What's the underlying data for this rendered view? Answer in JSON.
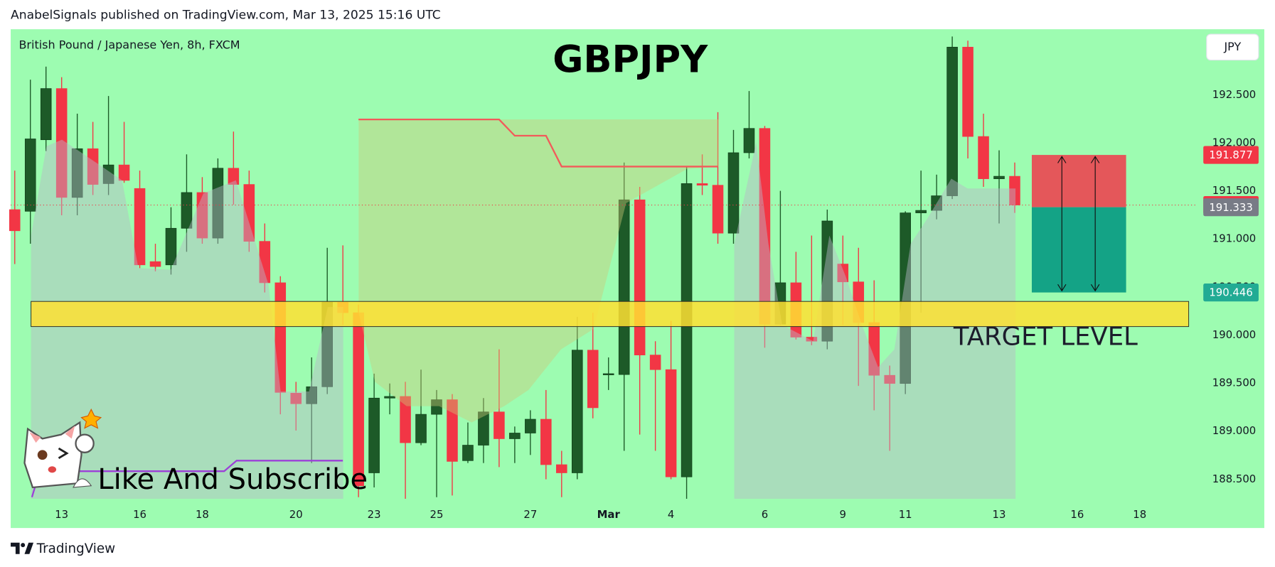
{
  "chart_data": {
    "type": "candlestick",
    "header": "AnabelSignals published on TradingView.com, Mar 13, 2025 15:16 UTC",
    "symbol": "British Pound / Japanese Yen, 8h, FXCM",
    "title": "GBPJPY",
    "currency": "JPY",
    "footer": "TradingView",
    "up_color": "#1d5a28",
    "down_color": "#f23645",
    "xlim": [
      -0.26,
      75.55
    ],
    "ylim": [
      187.995,
      193.185
    ],
    "yticks": [
      {
        "value": 188.5,
        "label": "188.500"
      },
      {
        "value": 189,
        "label": "189.000"
      },
      {
        "value": 189.5,
        "label": "189.500"
      },
      {
        "value": 190,
        "label": "190.000"
      },
      {
        "value": 190.5,
        "label": "190.500"
      },
      {
        "value": 191,
        "label": "191.000"
      },
      {
        "value": 191.5,
        "label": "191.500"
      },
      {
        "value": 192,
        "label": "192.000"
      },
      {
        "value": 192.5,
        "label": "192.500"
      }
    ],
    "xticks": [
      {
        "value": 3,
        "label": "13"
      },
      {
        "value": 8,
        "label": "16"
      },
      {
        "value": 12,
        "label": "18"
      },
      {
        "value": 18,
        "label": "20"
      },
      {
        "value": 23,
        "label": "23"
      },
      {
        "value": 27,
        "label": "25"
      },
      {
        "value": 33,
        "label": "27"
      },
      {
        "value": 38,
        "label": "Mar"
      },
      {
        "value": 42,
        "label": "4"
      },
      {
        "value": 48,
        "label": "6"
      },
      {
        "value": 53,
        "label": "9"
      },
      {
        "value": 57,
        "label": "11"
      },
      {
        "value": 63,
        "label": "13"
      },
      {
        "value": 68,
        "label": "16"
      },
      {
        "value": 72,
        "label": "18"
      }
    ],
    "open": [
      191.308,
      191.291,
      192.035,
      192.568,
      191.435,
      191.942,
      191.579,
      191.773,
      191.528,
      190.767,
      190.733,
      191.114,
      191.486,
      191.012,
      191.739,
      191.57,
      190.978,
      190.547,
      189.398,
      189.288,
      189.465,
      190.344,
      190.235,
      188.569,
      189.347,
      189.364,
      188.882,
      189.178,
      189.33,
      188.696,
      188.857,
      189.203,
      188.924,
      188.983,
      189.127,
      188.654,
      188.569,
      189.846,
      189.592,
      189.592,
      191.41,
      189.795,
      189.643,
      188.527,
      191.579,
      191.562,
      191.063,
      191.9,
      192.153,
      190.116,
      190.547,
      189.981,
      189.939,
      190.742,
      190.556,
      190.133,
      189.584,
      189.499,
      191.274,
      191.3,
      191.452,
      192.999,
      192.069,
      191.629,
      191.655
    ],
    "high": [
      191.714,
      192.66,
      192.796,
      192.686,
      192.306,
      192.221,
      192.49,
      192.221,
      191.714,
      190.953,
      191.333,
      191.883,
      191.646,
      191.841,
      192.12,
      191.714,
      191.164,
      190.615,
      189.516,
      189.77,
      190.911,
      190.936,
      190.319,
      189.601,
      189.499,
      189.516,
      189.643,
      189.431,
      189.389,
      189.093,
      189.347,
      189.854,
      189.051,
      189.22,
      189.431,
      188.798,
      190.192,
      190.235,
      189.77,
      191.798,
      191.545,
      189.939,
      190.15,
      191.756,
      191.883,
      192.322,
      192.137,
      192.542,
      192.179,
      191.503,
      190.869,
      191.038,
      191.308,
      191.038,
      190.911,
      190.573,
      189.685,
      191.291,
      191.714,
      191.672,
      193.109,
      193.066,
      192.306,
      191.925,
      191.798
    ],
    "low": [
      190.742,
      190.953,
      191.917,
      191.249,
      191.249,
      191.46,
      191.46,
      191.587,
      190.699,
      190.666,
      190.632,
      190.869,
      190.953,
      190.953,
      191.359,
      190.869,
      190.446,
      189.178,
      189.009,
      188.671,
      189.389,
      190.108,
      188.316,
      188.417,
      189.178,
      188.299,
      188.857,
      188.316,
      188.333,
      188.671,
      188.671,
      188.629,
      188.671,
      188.755,
      188.502,
      188.316,
      188.502,
      189.136,
      189.431,
      188.798,
      188.967,
      188.798,
      188.502,
      188.299,
      191.46,
      190.953,
      190.953,
      191.841,
      189.871,
      190.108,
      189.956,
      189.897,
      189.854,
      190.108,
      189.474,
      189.22,
      188.798,
      189.389,
      190.235,
      191.207,
      191.418,
      191.841,
      191.545,
      191.164,
      191.274
    ],
    "close": [
      191.088,
      192.044,
      192.568,
      191.435,
      191.942,
      191.57,
      191.773,
      191.612,
      190.733,
      190.716,
      191.114,
      191.486,
      191.012,
      191.739,
      191.57,
      190.978,
      190.547,
      189.406,
      189.288,
      189.465,
      190.344,
      190.235,
      188.434,
      189.347,
      189.364,
      188.882,
      189.178,
      189.33,
      188.688,
      188.857,
      189.203,
      188.924,
      188.983,
      189.127,
      188.654,
      188.569,
      189.846,
      189.246,
      189.601,
      191.41,
      189.795,
      189.643,
      188.527,
      191.579,
      191.562,
      191.063,
      191.9,
      192.153,
      190.116,
      190.547,
      189.981,
      189.939,
      191.19,
      190.556,
      190.133,
      189.584,
      189.499,
      191.274,
      191.3,
      191.452,
      192.999,
      192.069,
      191.629,
      191.655,
      191.356
    ],
    "resistance_line": {
      "color": "#f25a5a",
      "x": [
        22,
        31,
        32,
        34,
        35,
        45
      ],
      "values": [
        192.246,
        192.246,
        192.077,
        192.077,
        191.756,
        191.756
      ]
    },
    "support_line": {
      "color": "#9c40d8",
      "x": [
        1.1,
        1.6,
        13.4,
        14.2,
        21
      ],
      "values": [
        188.316,
        188.586,
        188.586,
        188.696,
        188.696
      ]
    },
    "zone": {
      "low": 190.091,
      "high": 190.353,
      "color": "#ffe033",
      "label": "TARGET LEVEL"
    },
    "position": {
      "stop": 191.877,
      "entry": 191.333,
      "target": 190.446
    },
    "price_labels": [
      {
        "value": 191.877,
        "color": "#f23645"
      },
      {
        "value": 191.356,
        "color": "#f23645"
      },
      {
        "value": 191.333,
        "color": "#787b86"
      },
      {
        "value": 190.446,
        "color": "#22ab94"
      }
    ],
    "annotation": "Like And Subscribe"
  }
}
